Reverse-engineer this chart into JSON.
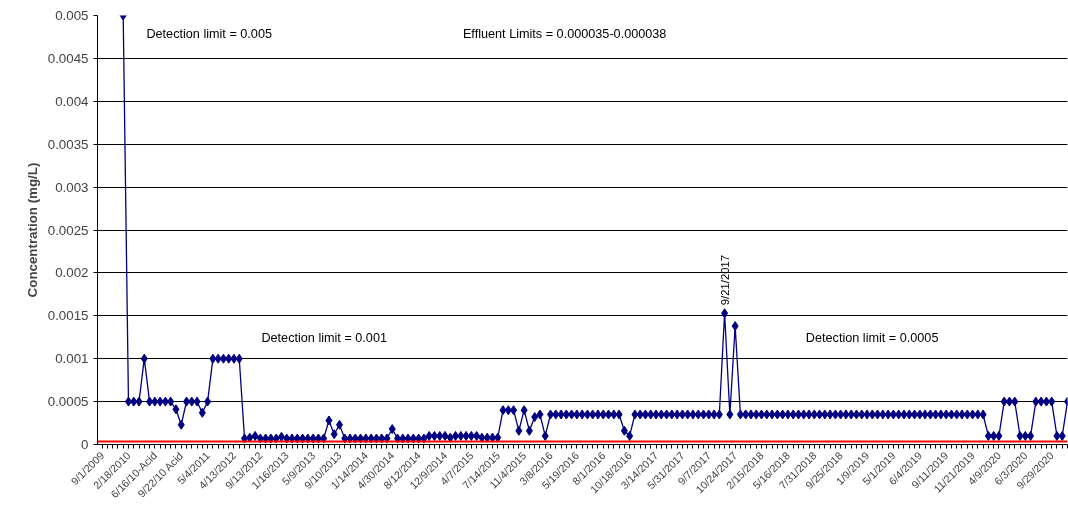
{
  "chart_data": {
    "type": "line",
    "ylabel": "Concentration (mg/L)",
    "categories": [
      "9/1/2009",
      null,
      null,
      null,
      null,
      "2/18/2010",
      null,
      null,
      null,
      null,
      "6/16/10-Acid",
      null,
      null,
      null,
      null,
      "9/22/10 Acid",
      null,
      null,
      null,
      null,
      "5/4/2011",
      null,
      null,
      null,
      null,
      "4/13/2012",
      null,
      null,
      null,
      null,
      "9/13/2012",
      null,
      null,
      null,
      null,
      "1/16/2013",
      null,
      null,
      null,
      null,
      "5/9/2013",
      null,
      null,
      null,
      null,
      "9/10/2013",
      null,
      null,
      null,
      null,
      "1/14/2014",
      null,
      null,
      null,
      null,
      "4/30/2014",
      null,
      null,
      null,
      null,
      "8/12/2014",
      null,
      null,
      null,
      null,
      "12/9/2014",
      null,
      null,
      null,
      null,
      "4/7/2015",
      null,
      null,
      null,
      null,
      "7/14/2015",
      null,
      null,
      null,
      null,
      "11/4/2015",
      null,
      null,
      null,
      null,
      "3/8/2016",
      null,
      null,
      null,
      null,
      "5/19/2016",
      null,
      null,
      null,
      null,
      "8/1/2016",
      null,
      null,
      null,
      null,
      "10/18/2016",
      null,
      null,
      null,
      null,
      "3/14/2017",
      null,
      null,
      null,
      null,
      "5/31/2017",
      null,
      null,
      null,
      null,
      "9/7/2017",
      null,
      null,
      null,
      null,
      "10/24/2017",
      null,
      null,
      null,
      null,
      "2/15/2018",
      null,
      null,
      null,
      null,
      "5/16/2018",
      null,
      null,
      null,
      null,
      "7/31/2018",
      null,
      null,
      null,
      null,
      "9/25/2018",
      null,
      null,
      null,
      null,
      "1/9/2019",
      null,
      null,
      null,
      null,
      "5/1/2019",
      null,
      null,
      null,
      null,
      "6/4/2019",
      null,
      null,
      null,
      null,
      "9/11/2019",
      null,
      null,
      null,
      null,
      "11/21/2019",
      null,
      null,
      null,
      null,
      "4/9/2020",
      null,
      null,
      null,
      null,
      "6/3/2020",
      null,
      null,
      null,
      null,
      "9/29/2020",
      null,
      null,
      null
    ],
    "series": [
      {
        "color": "#000080",
        "values": [
          null,
          null,
          null,
          null,
          0.005,
          0.0005,
          0.0005,
          0.0005,
          0.001,
          0.0005,
          0.0005,
          0.0005,
          0.0005,
          0.0005,
          0.00041,
          0.00023,
          0.0005,
          0.0005,
          0.0005,
          0.00037,
          0.0005,
          0.001,
          0.001,
          0.001,
          0.001,
          0.001,
          0.001,
          7e-05,
          8e-05,
          0.0001,
          7e-05,
          7e-05,
          7e-05,
          7e-05,
          9e-05,
          7e-05,
          7e-05,
          7e-05,
          7e-05,
          7e-05,
          7e-05,
          7e-05,
          7e-05,
          0.00028,
          0.00012,
          0.00023,
          7e-05,
          7e-05,
          7e-05,
          7e-05,
          7e-05,
          7e-05,
          7e-05,
          7e-05,
          7e-05,
          0.00018,
          7e-05,
          7e-05,
          7e-05,
          7e-05,
          7e-05,
          7e-05,
          0.0001,
          0.0001,
          0.0001,
          0.0001,
          8e-05,
          0.0001,
          0.0001,
          0.0001,
          0.0001,
          0.0001,
          8e-05,
          8e-05,
          8e-05,
          8e-05,
          0.0004,
          0.0004,
          0.0004,
          0.00016,
          0.0004,
          0.00016,
          0.00032,
          0.00035,
          0.0001,
          0.00035,
          0.00035,
          0.00035,
          0.00035,
          0.00035,
          0.00035,
          0.00035,
          0.00035,
          0.00035,
          0.00035,
          0.00035,
          0.00035,
          0.00035,
          0.00035,
          0.00016,
          0.0001,
          0.00035,
          0.00035,
          0.00035,
          0.00035,
          0.00035,
          0.00035,
          0.00035,
          0.00035,
          0.00035,
          0.00035,
          0.00035,
          0.00035,
          0.00035,
          0.00035,
          0.00035,
          0.00035,
          0.00035,
          0.00153,
          0.00035,
          0.00138,
          0.00035,
          0.00035,
          0.00035,
          0.00035,
          0.00035,
          0.00035,
          0.00035,
          0.00035,
          0.00035,
          0.00035,
          0.00035,
          0.00035,
          0.00035,
          0.00035,
          0.00035,
          0.00035,
          0.00035,
          0.00035,
          0.00035,
          0.00035,
          0.00035,
          0.00035,
          0.00035,
          0.00035,
          0.00035,
          0.00035,
          0.00035,
          0.00035,
          0.00035,
          0.00035,
          0.00035,
          0.00035,
          0.00035,
          0.00035,
          0.00035,
          0.00035,
          0.00035,
          0.00035,
          0.00035,
          0.00035,
          0.00035,
          0.00035,
          0.00035,
          0.00035,
          0.00035,
          0.00035,
          0.00035,
          0.0001,
          0.0001,
          0.0001,
          0.0005,
          0.0005,
          0.0005,
          0.0001,
          0.0001,
          0.0001,
          0.0005,
          0.0005,
          0.0005,
          0.0005,
          0.0001,
          0.0001,
          0.0005
        ]
      }
    ],
    "ylim": [
      0,
      0.005
    ],
    "yticks": [
      0,
      0.0005,
      0.001,
      0.0015,
      0.002,
      0.0025,
      0.003,
      0.0035,
      0.004,
      0.0045,
      0.005
    ],
    "grid": "y",
    "marker": "diamond",
    "line_style": "solid",
    "ref_lines": [
      {
        "axis": "y",
        "value": 3.5e-05,
        "color": "#ff0000"
      }
    ],
    "annotations": [
      "Detection limit = 0.005",
      "Effluent Limits = 0.000035-0.000038",
      "Detection limit = 0.001",
      "Detection limit = 0.0005",
      {
        "text": "9/21/2017",
        "y": 0.00153
      }
    ]
  }
}
